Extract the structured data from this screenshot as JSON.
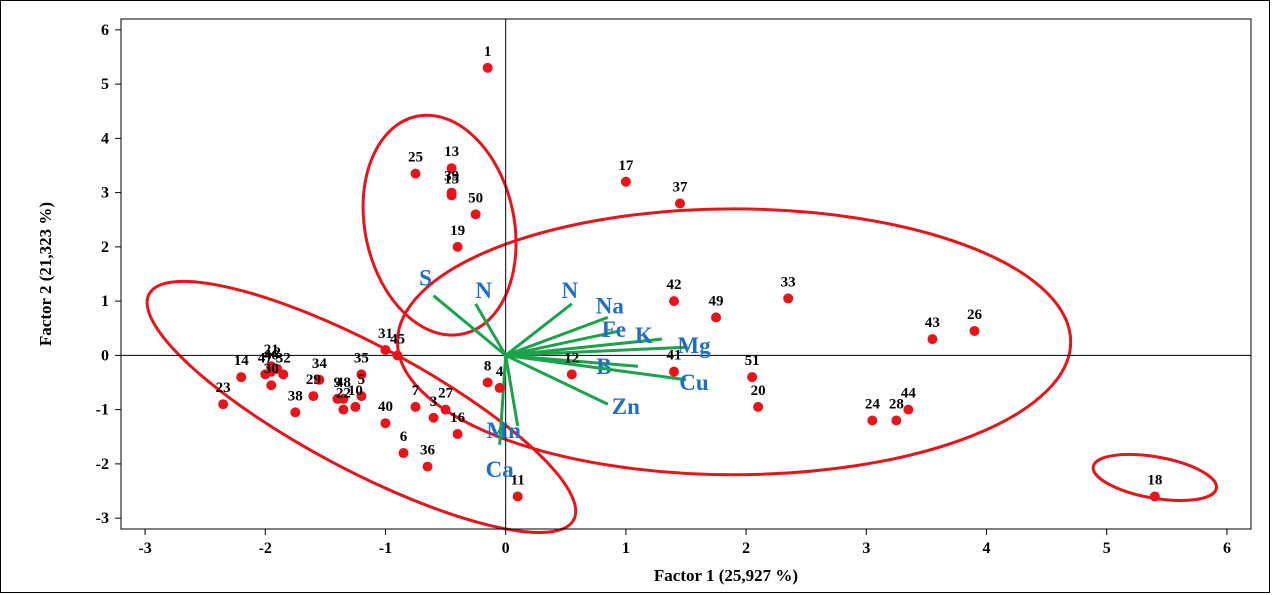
{
  "chart_data": {
    "type": "scatter",
    "title": "",
    "xlabel": "Factor 1 (25,927 %)",
    "ylabel": "Factor 2 (21,323 %)",
    "xlim": [
      -3.2,
      6.2
    ],
    "ylim": [
      -3.2,
      6.2
    ],
    "x_ticks": [
      -3,
      -2,
      -1,
      0,
      1,
      2,
      3,
      4,
      5,
      6
    ],
    "y_ticks": [
      -3,
      -2,
      -1,
      0,
      1,
      2,
      3,
      4,
      5,
      6
    ],
    "grid": false,
    "point_color": "#e8141a",
    "vector_color": "#1aa34a",
    "ellipse_color": "#e8141a",
    "variable_label_color": "#1f6fc8",
    "points": [
      {
        "label": "1",
        "x": -0.15,
        "y": 5.3
      },
      {
        "label": "2",
        "x": -1.9,
        "y": -0.25
      },
      {
        "label": "3",
        "x": -0.6,
        "y": -1.15
      },
      {
        "label": "4",
        "x": -0.05,
        "y": -0.6
      },
      {
        "label": "5",
        "x": -1.2,
        "y": -0.75
      },
      {
        "label": "6",
        "x": -0.85,
        "y": -1.8
      },
      {
        "label": "7",
        "x": -0.75,
        "y": -0.95
      },
      {
        "label": "8",
        "x": -0.15,
        "y": -0.5
      },
      {
        "label": "9",
        "x": -1.4,
        "y": -0.8
      },
      {
        "label": "10",
        "x": -1.25,
        "y": -0.95
      },
      {
        "label": "11",
        "x": 0.1,
        "y": -2.6
      },
      {
        "label": "12",
        "x": 0.55,
        "y": -0.35
      },
      {
        "label": "13",
        "x": -0.45,
        "y": 3.45
      },
      {
        "label": "14",
        "x": -2.2,
        "y": -0.4
      },
      {
        "label": "15",
        "x": -0.45,
        "y": 2.95
      },
      {
        "label": "16",
        "x": -0.4,
        "y": -1.45
      },
      {
        "label": "17",
        "x": 1.0,
        "y": 3.2
      },
      {
        "label": "18",
        "x": 5.4,
        "y": -2.6
      },
      {
        "label": "19",
        "x": -0.4,
        "y": 2.0
      },
      {
        "label": "20",
        "x": 2.1,
        "y": -0.95
      },
      {
        "label": "21",
        "x": -1.95,
        "y": -0.2
      },
      {
        "label": "22",
        "x": -1.35,
        "y": -1.0
      },
      {
        "label": "23",
        "x": -2.35,
        "y": -0.9
      },
      {
        "label": "24",
        "x": 3.05,
        "y": -1.2
      },
      {
        "label": "25",
        "x": -0.75,
        "y": 3.35
      },
      {
        "label": "26",
        "x": 3.9,
        "y": 0.45
      },
      {
        "label": "27",
        "x": -0.5,
        "y": -1.0
      },
      {
        "label": "28",
        "x": 3.25,
        "y": -1.2
      },
      {
        "label": "29",
        "x": -1.6,
        "y": -0.75
      },
      {
        "label": "30",
        "x": -1.95,
        "y": -0.55
      },
      {
        "label": "31",
        "x": -1.0,
        "y": 0.1
      },
      {
        "label": "32",
        "x": -1.85,
        "y": -0.35
      },
      {
        "label": "33",
        "x": 2.35,
        "y": 1.05
      },
      {
        "label": "34",
        "x": -1.55,
        "y": -0.45
      },
      {
        "label": "35",
        "x": -1.2,
        "y": -0.35
      },
      {
        "label": "36",
        "x": -0.65,
        "y": -2.05
      },
      {
        "label": "37",
        "x": 1.45,
        "y": 2.8
      },
      {
        "label": "38",
        "x": -1.75,
        "y": -1.05
      },
      {
        "label": "39",
        "x": -0.45,
        "y": 3.0
      },
      {
        "label": "40",
        "x": -1.0,
        "y": -1.25
      },
      {
        "label": "41",
        "x": 1.4,
        "y": -0.3
      },
      {
        "label": "42",
        "x": 1.4,
        "y": 1.0
      },
      {
        "label": "43",
        "x": 3.55,
        "y": 0.3
      },
      {
        "label": "44",
        "x": 3.35,
        "y": -1.0
      },
      {
        "label": "45",
        "x": -0.9,
        "y": 0.0
      },
      {
        "label": "46",
        "x": -1.95,
        "y": -0.3
      },
      {
        "label": "47",
        "x": -2.0,
        "y": -0.35
      },
      {
        "label": "48",
        "x": -1.35,
        "y": -0.8
      },
      {
        "label": "49",
        "x": 1.75,
        "y": 0.7
      },
      {
        "label": "50",
        "x": -0.25,
        "y": 2.6
      },
      {
        "label": "51",
        "x": 2.05,
        "y": -0.4
      }
    ],
    "vectors": [
      {
        "label": "S",
        "x": -0.6,
        "y": 1.1
      },
      {
        "label": "N",
        "x": -0.25,
        "y": 0.95
      },
      {
        "label": "N",
        "x": 0.55,
        "y": 0.95
      },
      {
        "label": "Na",
        "x": 0.85,
        "y": 0.7
      },
      {
        "label": "Fe",
        "x": 0.95,
        "y": 0.45
      },
      {
        "label": "K",
        "x": 1.3,
        "y": 0.3
      },
      {
        "label": "Mg",
        "x": 1.5,
        "y": 0.15
      },
      {
        "label": "B",
        "x": 1.1,
        "y": -0.2
      },
      {
        "label": "Cu",
        "x": 1.5,
        "y": -0.45
      },
      {
        "label": "Zn",
        "x": 0.85,
        "y": -0.9
      },
      {
        "label": "Mn",
        "x": 0.1,
        "y": -1.3
      },
      {
        "label": "Ca",
        "x": -0.05,
        "y": -1.65
      }
    ]
  }
}
